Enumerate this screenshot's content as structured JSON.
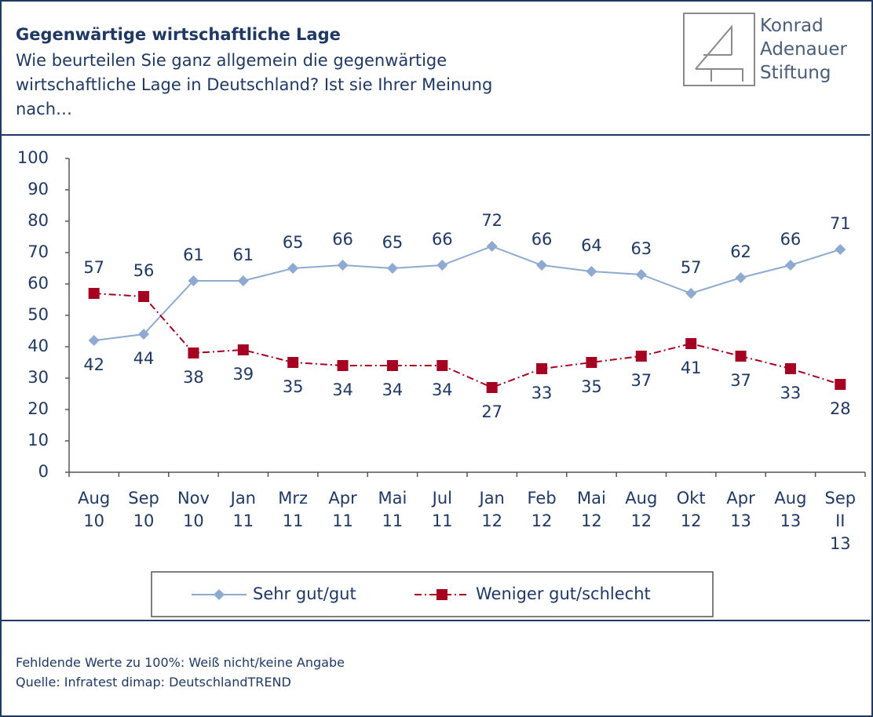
{
  "chart_data": {
    "type": "line",
    "title": "Gegenwärtige wirtschaftliche Lage",
    "subtitle": [
      "Wie beurteilen Sie ganz allgemein  die gegenwärtige",
      "wirtschaftliche Lage in Deutschland? Ist sie Ihrer Meinung",
      "nach…"
    ],
    "logo": [
      "Konrad",
      "Adenauer",
      "Stiftung"
    ],
    "categories": [
      "Aug\n10",
      "Sep\n10",
      "Nov\n10",
      "Jan\n11",
      "Mrz\n11",
      "Apr\n11",
      "Mai\n11",
      "Jul\n11",
      "Jan\n12",
      "Feb\n12",
      "Mai\n12",
      "Aug\n12",
      "Okt\n12",
      "Apr\n13",
      "Aug\n13",
      "Sep\nII\n13"
    ],
    "series": [
      {
        "name": "Sehr gut/gut",
        "color": "#8eaad0",
        "marker": "diamond",
        "dash": "solid",
        "values": [
          42,
          44,
          61,
          61,
          65,
          66,
          65,
          66,
          72,
          66,
          64,
          63,
          57,
          62,
          66,
          71
        ]
      },
      {
        "name": "Weniger gut/schlecht",
        "color": "#a50021",
        "marker": "square",
        "dash": "dashdot",
        "values": [
          57,
          56,
          38,
          39,
          35,
          34,
          34,
          34,
          27,
          33,
          35,
          37,
          41,
          37,
          33,
          28
        ]
      }
    ],
    "ylim": [
      0,
      100
    ],
    "yticks": [
      0,
      10,
      20,
      30,
      40,
      50,
      60,
      70,
      80,
      90,
      100
    ],
    "legend": "bottom",
    "notes": [
      "Fehldende Werte zu 100%: Weiß nicht/keine Angabe",
      "Quelle: Infratest dimap: DeutschlandTREND"
    ]
  }
}
